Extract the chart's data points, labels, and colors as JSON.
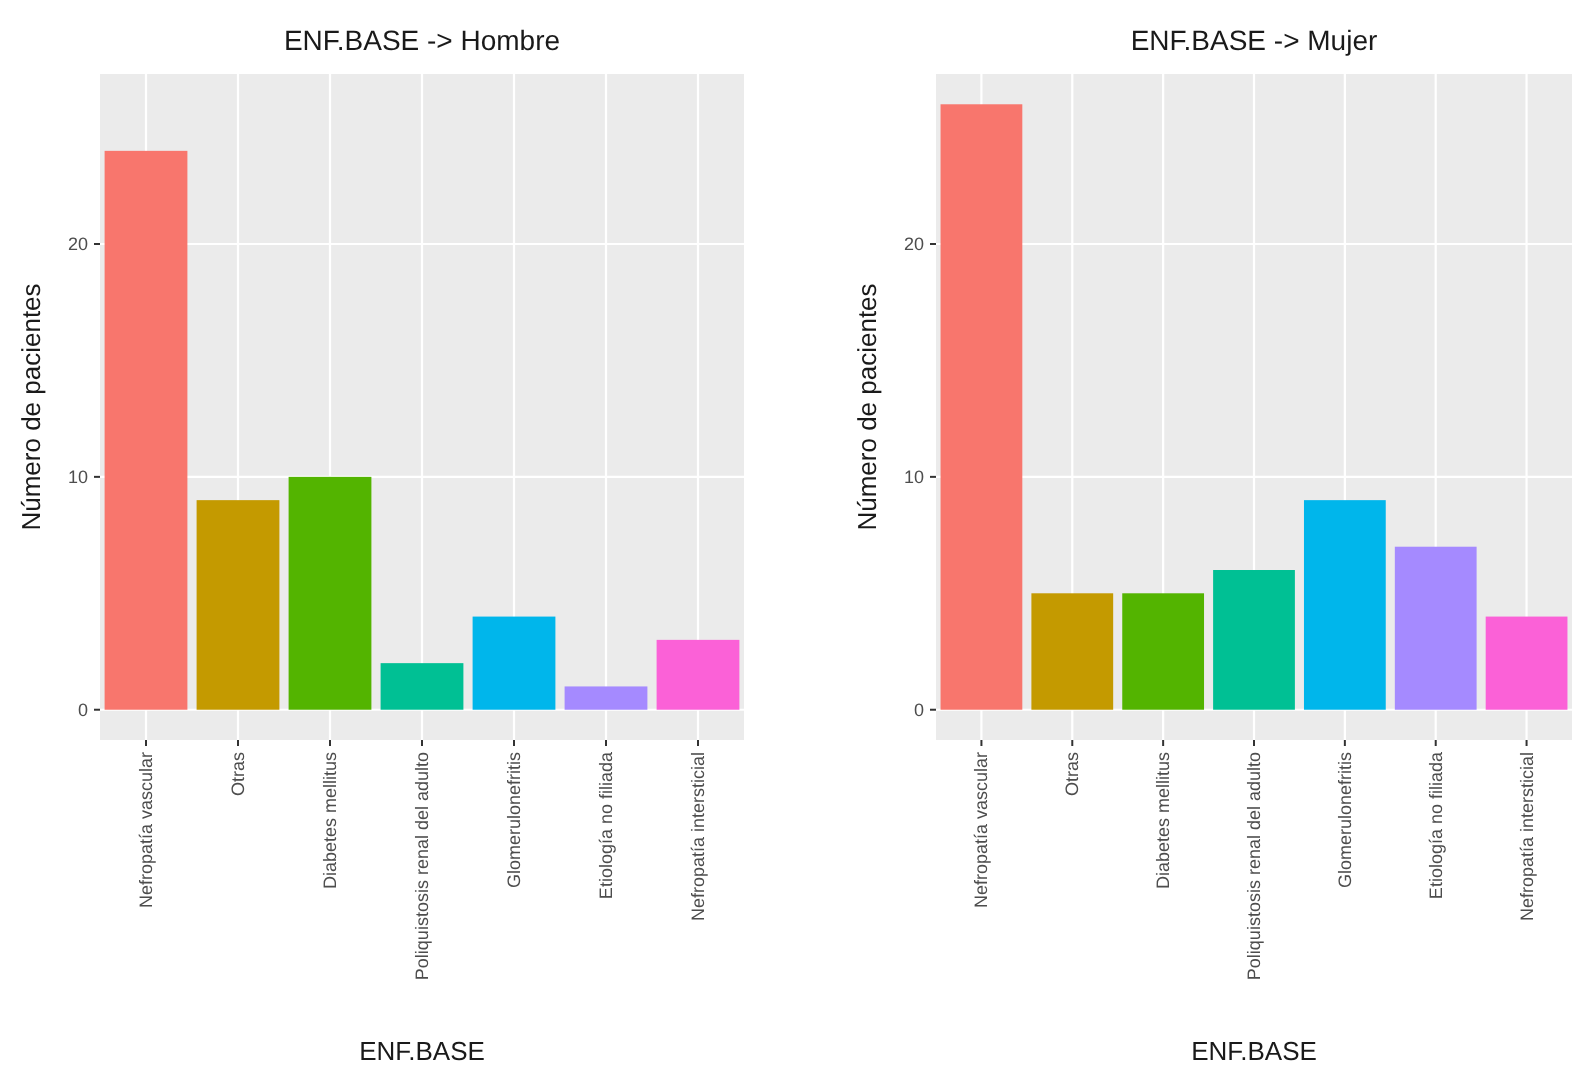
{
  "chart_data": [
    {
      "type": "bar",
      "title": "ENF.BASE -> Hombre",
      "xlabel": "ENF.BASE",
      "ylabel": "Número de pacientes",
      "categories": [
        "Nefropatía vascular",
        "Otras",
        "Diabetes mellitus",
        "Poliquistosis renal del adulto",
        "Glomerulonefritis",
        "Etiología no filiada",
        "Nefropatía intersticial"
      ],
      "values": [
        24,
        9,
        10,
        2,
        4,
        1,
        3
      ],
      "colors": [
        "#f8766d",
        "#c49a00",
        "#53b400",
        "#00c094",
        "#00b6eb",
        "#a58aff",
        "#fb61d7"
      ],
      "ylim": [
        -1.3,
        27.3
      ],
      "yticks": [
        0,
        10,
        20
      ],
      "grid": true
    },
    {
      "type": "bar",
      "title": "ENF.BASE -> Mujer",
      "xlabel": "ENF.BASE",
      "ylabel": "Número de pacientes",
      "categories": [
        "Nefropatía vascular",
        "Otras",
        "Diabetes mellitus",
        "Poliquistosis renal del adulto",
        "Glomerulonefritis",
        "Etiología no filiada",
        "Nefropatía intersticial"
      ],
      "values": [
        26,
        5,
        5,
        6,
        9,
        7,
        4
      ],
      "colors": [
        "#f8766d",
        "#c49a00",
        "#53b400",
        "#00c094",
        "#00b6eb",
        "#a58aff",
        "#fb61d7"
      ],
      "ylim": [
        -1.3,
        27.3
      ],
      "yticks": [
        0,
        10,
        20
      ],
      "grid": true
    }
  ]
}
